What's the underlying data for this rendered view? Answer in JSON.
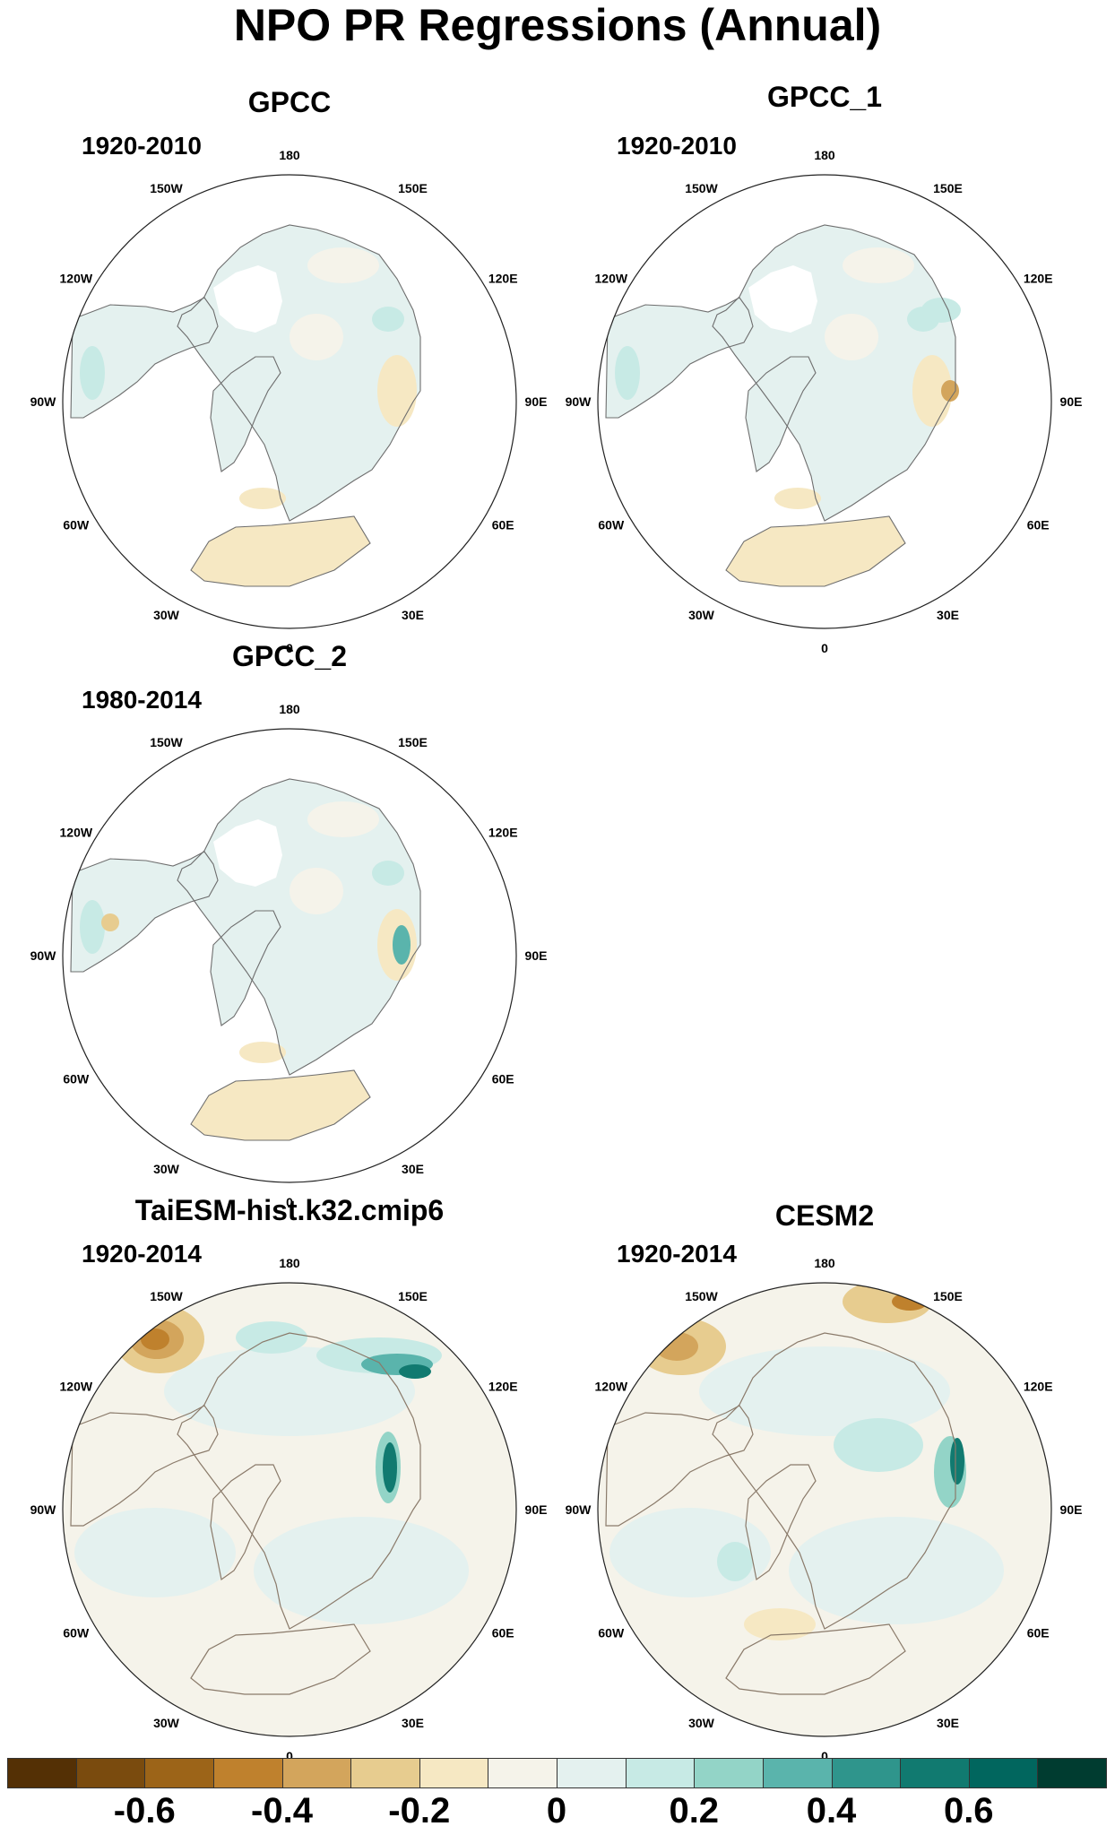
{
  "title": "NPO PR Regressions (Annual)",
  "longitude_labels": [
    "180",
    "150E",
    "120E",
    "90E",
    "60E",
    "30E",
    "0",
    "30W",
    "60W",
    "90W",
    "120W",
    "150W"
  ],
  "panels": [
    {
      "name": "GPCC",
      "years": "1920-2010",
      "land_only": true
    },
    {
      "name": "GPCC_1",
      "years": "1920-2010",
      "land_only": true
    },
    {
      "name": "GPCC_2",
      "years": "1980-2014",
      "land_only": true
    },
    {
      "name": "TaiESM-hist.k32.cmip6",
      "years": "1920-2014",
      "land_only": false
    },
    {
      "name": "CESM2",
      "years": "1920-2014",
      "land_only": false
    }
  ],
  "colorbar": {
    "colors": [
      "#543005",
      "#7a4b0e",
      "#9c6418",
      "#bf812d",
      "#d3a55c",
      "#e7cc8f",
      "#f6e8c3",
      "#f5f3ea",
      "#e4f1ef",
      "#c7eae5",
      "#93d4c7",
      "#5ab4ac",
      "#2f958c",
      "#117a70",
      "#01665e",
      "#003c30"
    ],
    "tick_labels": [
      "-0.6",
      "-0.4",
      "-0.2",
      "0",
      "0.2",
      "0.4",
      "0.6"
    ]
  }
}
